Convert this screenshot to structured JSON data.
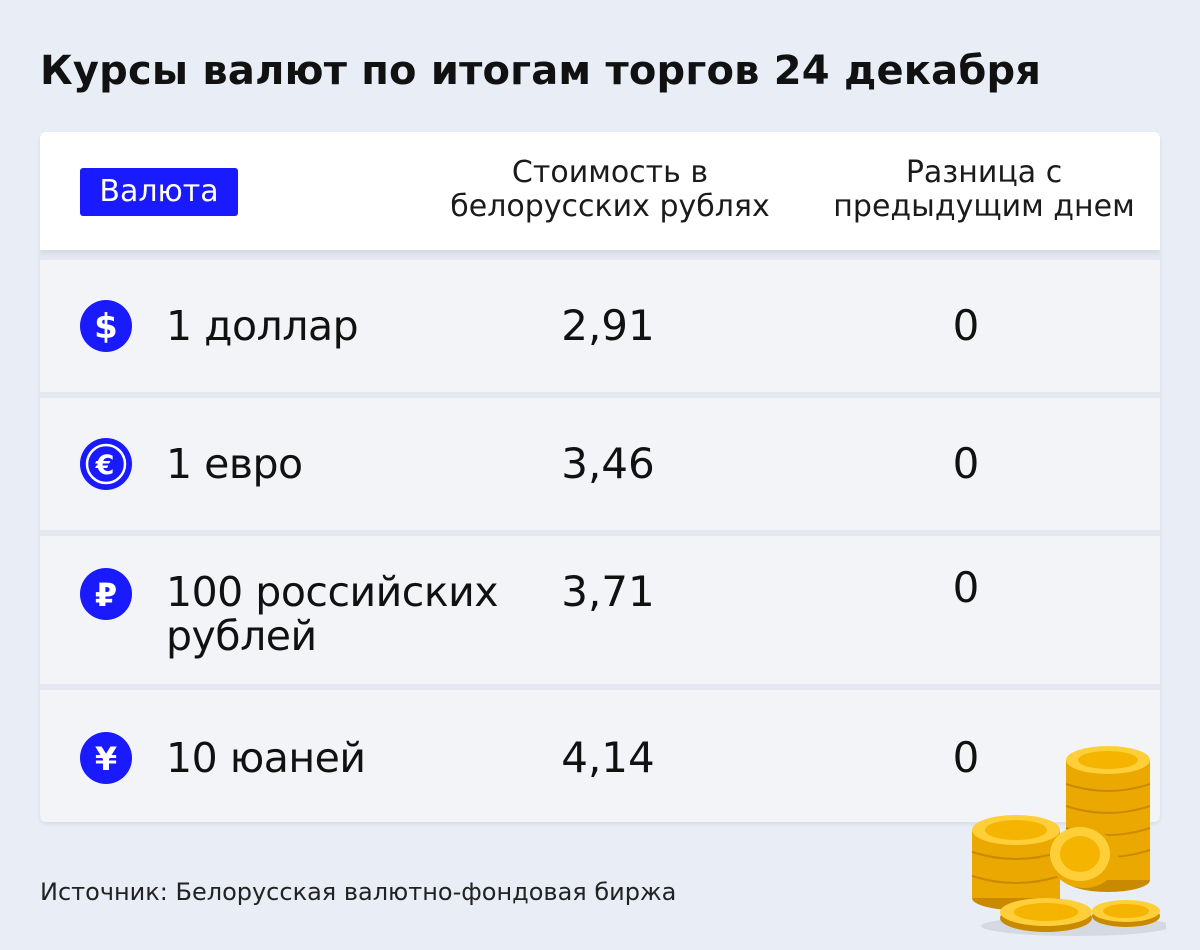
{
  "title": "Курсы валют по итогам торгов 24 декабря",
  "header": {
    "currency_label": "Валюта",
    "value_label_line1": "Стоимость в",
    "value_label_line2": "белорусских рублях",
    "diff_label_line1": "Разница с",
    "diff_label_line2": "предыдущим днем"
  },
  "rows": [
    {
      "icon": "dollar-icon",
      "name_line1": "1 доллар",
      "name_line2": "",
      "value": "2,91",
      "diff": "0"
    },
    {
      "icon": "euro-icon",
      "name_line1": "1 евро",
      "name_line2": "",
      "value": "3,46",
      "diff": "0"
    },
    {
      "icon": "ruble-icon",
      "name_line1": "100 российских",
      "name_line2": "рублей",
      "value": "3,71",
      "diff": "0"
    },
    {
      "icon": "yuan-icon",
      "name_line1": "10 юаней",
      "name_line2": "",
      "value": "4,14",
      "diff": "0"
    }
  ],
  "source": "Источник: Белорусская валютно-фондовая биржа",
  "colors": {
    "accent": "#1a1aff",
    "background": "#e8edf6",
    "row": "#f3f4f7",
    "coin": "#f5b400"
  }
}
